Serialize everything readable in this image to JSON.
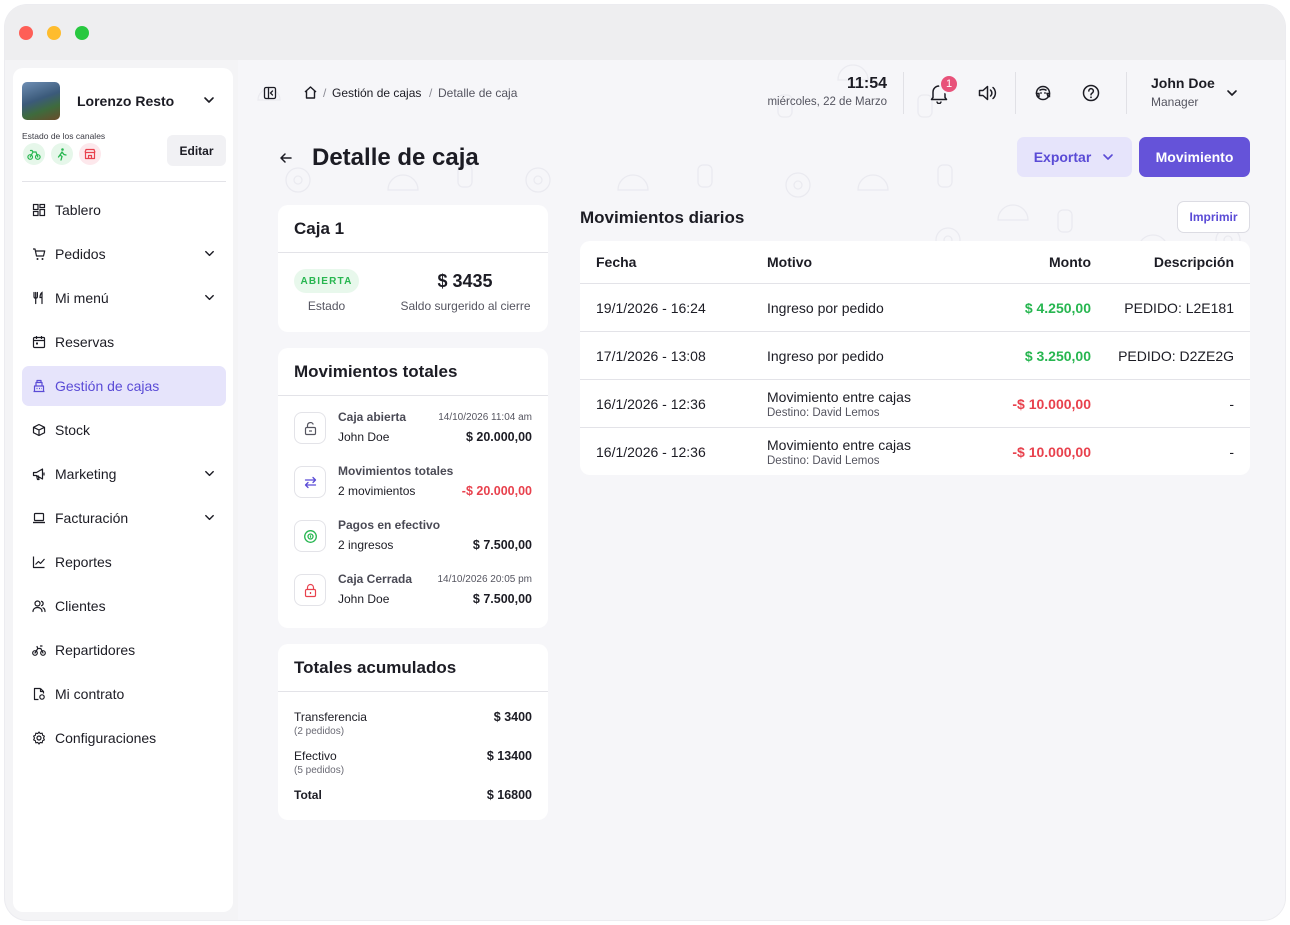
{
  "store": {
    "name": "Lorenzo Resto",
    "channels_label": "Estado de los canales",
    "edit_label": "Editar"
  },
  "nav": [
    {
      "label": "Tablero",
      "icon": "dashboard-icon",
      "has_children": false,
      "active": false
    },
    {
      "label": "Pedidos",
      "icon": "cart-icon",
      "has_children": true,
      "active": false
    },
    {
      "label": "Mi menú",
      "icon": "utensils-icon",
      "has_children": true,
      "active": false
    },
    {
      "label": "Reservas",
      "icon": "calendar-icon",
      "has_children": false,
      "active": false
    },
    {
      "label": "Gestión de cajas",
      "icon": "cash-register-icon",
      "has_children": false,
      "active": true
    },
    {
      "label": "Stock",
      "icon": "box-icon",
      "has_children": false,
      "active": false
    },
    {
      "label": "Marketing",
      "icon": "megaphone-icon",
      "has_children": true,
      "active": false
    },
    {
      "label": "Facturación",
      "icon": "laptop-icon",
      "has_children": true,
      "active": false
    },
    {
      "label": "Reportes",
      "icon": "chart-line-icon",
      "has_children": false,
      "active": false
    },
    {
      "label": "Clientes",
      "icon": "users-icon",
      "has_children": false,
      "active": false
    },
    {
      "label": "Repartidores",
      "icon": "bike-icon",
      "has_children": false,
      "active": false
    },
    {
      "label": "Mi contrato",
      "icon": "contract-icon",
      "has_children": false,
      "active": false
    },
    {
      "label": "Configuraciones",
      "icon": "gear-icon",
      "has_children": false,
      "active": false
    }
  ],
  "breadcrumb": {
    "parent": "Gestión de cajas",
    "current": "Detalle de caja",
    "separator": "/"
  },
  "clock": {
    "time": "11:54",
    "date": "miércoles, 22 de Marzo"
  },
  "notifications": {
    "count": "1"
  },
  "user": {
    "name": "John Doe",
    "role": "Manager"
  },
  "page": {
    "title": "Detalle de caja",
    "export_label": "Exportar",
    "movement_label": "Movimiento"
  },
  "caja": {
    "title": "Caja 1",
    "status": "ABIERTA",
    "status_label": "Estado",
    "balance": "$ 3435",
    "balance_label": "Saldo surgerido al cierre"
  },
  "movimientos_totales": {
    "title": "Movimientos totales",
    "items": [
      {
        "title": "Caja abierta",
        "meta": "14/10/2026 11:04 am",
        "sub": "John Doe",
        "amount": "$ 20.000,00",
        "negative": false,
        "icon": "lock-open-icon"
      },
      {
        "title": "Movimientos totales",
        "meta": "",
        "sub": "2 movimientos",
        "amount": "-$ 20.000,00",
        "negative": true,
        "icon": "transfer-arrows-icon"
      },
      {
        "title": "Pagos en efectivo",
        "meta": "",
        "sub": "2 ingresos",
        "amount": "$ 7.500,00",
        "negative": false,
        "icon": "cash-icon"
      },
      {
        "title": "Caja Cerrada",
        "meta": "14/10/2026 20:05 pm",
        "sub": "John Doe",
        "amount": "$ 7.500,00",
        "negative": false,
        "icon": "lock-closed-icon"
      }
    ]
  },
  "totales": {
    "title": "Totales acumulados",
    "rows": [
      {
        "name": "Transferencia",
        "sub": "(2 pedidos)",
        "amount": "$ 3400"
      },
      {
        "name": "Efectivo",
        "sub": "(5 pedidos)",
        "amount": "$ 13400"
      }
    ],
    "total_label": "Total",
    "total_amount": "$ 16800"
  },
  "daily": {
    "title": "Movimientos diarios",
    "print_label": "Imprimir",
    "columns": [
      "Fecha",
      "Motivo",
      "Monto",
      "Descripción"
    ],
    "rows": [
      {
        "fecha": "19/1/2026 - 16:24",
        "motivo": "Ingreso por pedido",
        "sub": "",
        "monto": "$ 4.250,00",
        "negative": false,
        "descripcion": "PEDIDO: L2E181"
      },
      {
        "fecha": "17/1/2026 - 13:08",
        "motivo": "Ingreso por pedido",
        "sub": "",
        "monto": "$ 3.250,00",
        "negative": false,
        "descripcion": "PEDIDO: D2ZE2G"
      },
      {
        "fecha": "16/1/2026 - 12:36",
        "motivo": "Movimiento entre cajas",
        "sub": "Destino: David Lemos",
        "monto": "-$ 10.000,00",
        "negative": true,
        "descripcion": "-"
      },
      {
        "fecha": "16/1/2026 - 12:36",
        "motivo": "Movimiento entre cajas",
        "sub": "Destino: David Lemos",
        "monto": "-$ 10.000,00",
        "negative": true,
        "descripcion": "-"
      }
    ]
  },
  "colors": {
    "accent": "#6553d9",
    "accent_soft": "#e6e4fb",
    "positive": "#27b650",
    "negative": "#e8414d",
    "badge": "#e8527a"
  }
}
